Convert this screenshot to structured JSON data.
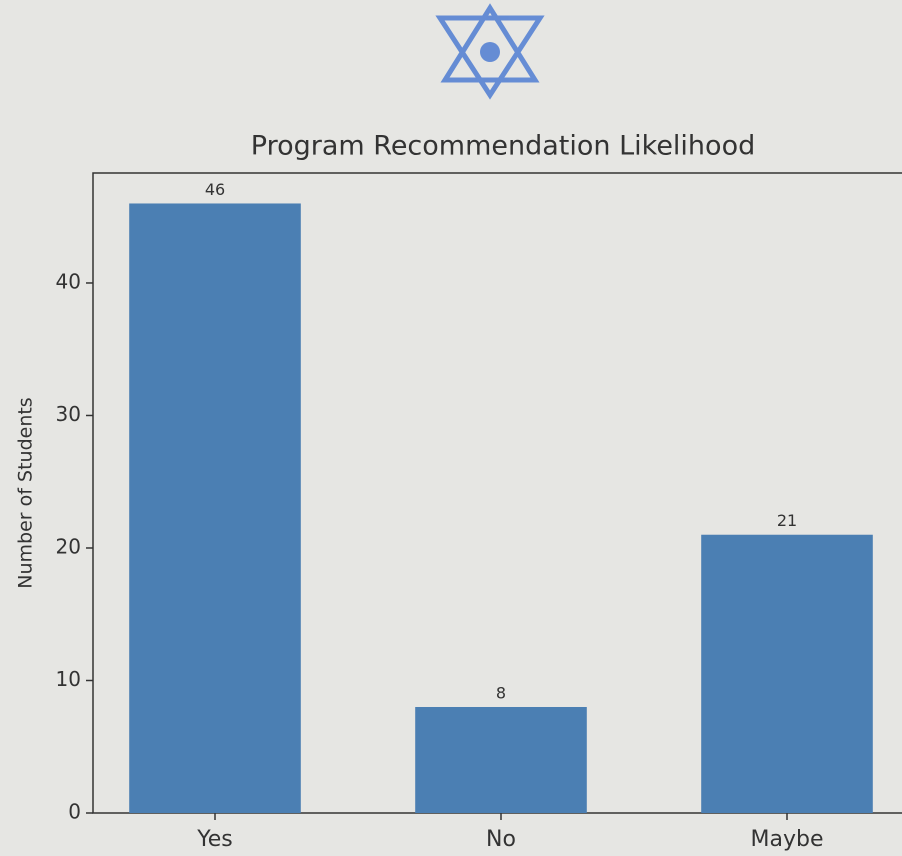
{
  "chart_data": {
    "type": "bar",
    "title": "Program Recommendation Likelihood",
    "y_label": "Number of Students",
    "categories": [
      "Yes",
      "No",
      "Maybe"
    ],
    "values": [
      46,
      8,
      21
    ],
    "color": "#4b7fb3",
    "ylim": [
      0,
      48.3
    ],
    "yticks": [
      0,
      10,
      20,
      30,
      40
    ]
  }
}
